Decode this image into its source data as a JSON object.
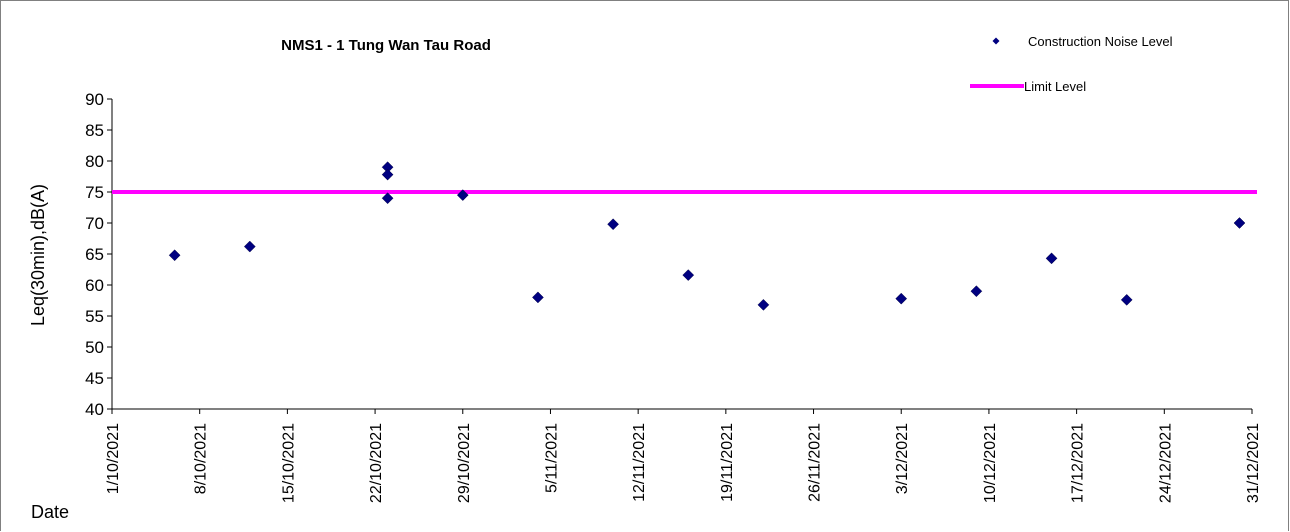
{
  "chart_data": {
    "type": "scatter",
    "title": "NMS1 - 1 Tung Wan Tau Road",
    "xlabel": "Date",
    "ylabel": "Leq(30min),dB(A)",
    "ylim": [
      40,
      90
    ],
    "yticks": [
      40,
      45,
      50,
      55,
      60,
      65,
      70,
      75,
      80,
      85,
      90
    ],
    "xlim": [
      "2021-10-01",
      "2021-12-31"
    ],
    "xtick_labels": [
      "1/10/2021",
      "8/10/2021",
      "15/10/2021",
      "22/10/2021",
      "29/10/2021",
      "5/11/2021",
      "12/11/2021",
      "19/11/2021",
      "26/11/2021",
      "3/12/2021",
      "10/12/2021",
      "17/12/2021",
      "24/12/2021",
      "31/12/2021"
    ],
    "xtick_dates": [
      "2021-10-01",
      "2021-10-08",
      "2021-10-15",
      "2021-10-22",
      "2021-10-29",
      "2021-11-05",
      "2021-11-12",
      "2021-11-19",
      "2021-11-26",
      "2021-12-03",
      "2021-12-10",
      "2021-12-17",
      "2021-12-24",
      "2021-12-31"
    ],
    "series": [
      {
        "name": "Construction Noise Level",
        "color": "#000080",
        "marker": "diamond",
        "points": [
          {
            "x": "2021-10-06",
            "y": 64.8
          },
          {
            "x": "2021-10-12",
            "y": 66.2
          },
          {
            "x": "2021-10-23",
            "y": 79.0
          },
          {
            "x": "2021-10-23",
            "y": 77.8
          },
          {
            "x": "2021-10-23",
            "y": 74.0
          },
          {
            "x": "2021-10-29",
            "y": 74.5
          },
          {
            "x": "2021-11-04",
            "y": 58.0
          },
          {
            "x": "2021-11-10",
            "y": 69.8
          },
          {
            "x": "2021-11-16",
            "y": 61.6
          },
          {
            "x": "2021-11-22",
            "y": 56.8
          },
          {
            "x": "2021-12-03",
            "y": 57.8
          },
          {
            "x": "2021-12-09",
            "y": 59.0
          },
          {
            "x": "2021-12-15",
            "y": 64.3
          },
          {
            "x": "2021-12-21",
            "y": 57.6
          },
          {
            "x": "2021-12-30",
            "y": 70.0
          }
        ]
      },
      {
        "name": "Limit Level",
        "color": "#ff00ff",
        "type": "line",
        "value": 75
      }
    ],
    "grid": false,
    "legend": "top-right"
  }
}
